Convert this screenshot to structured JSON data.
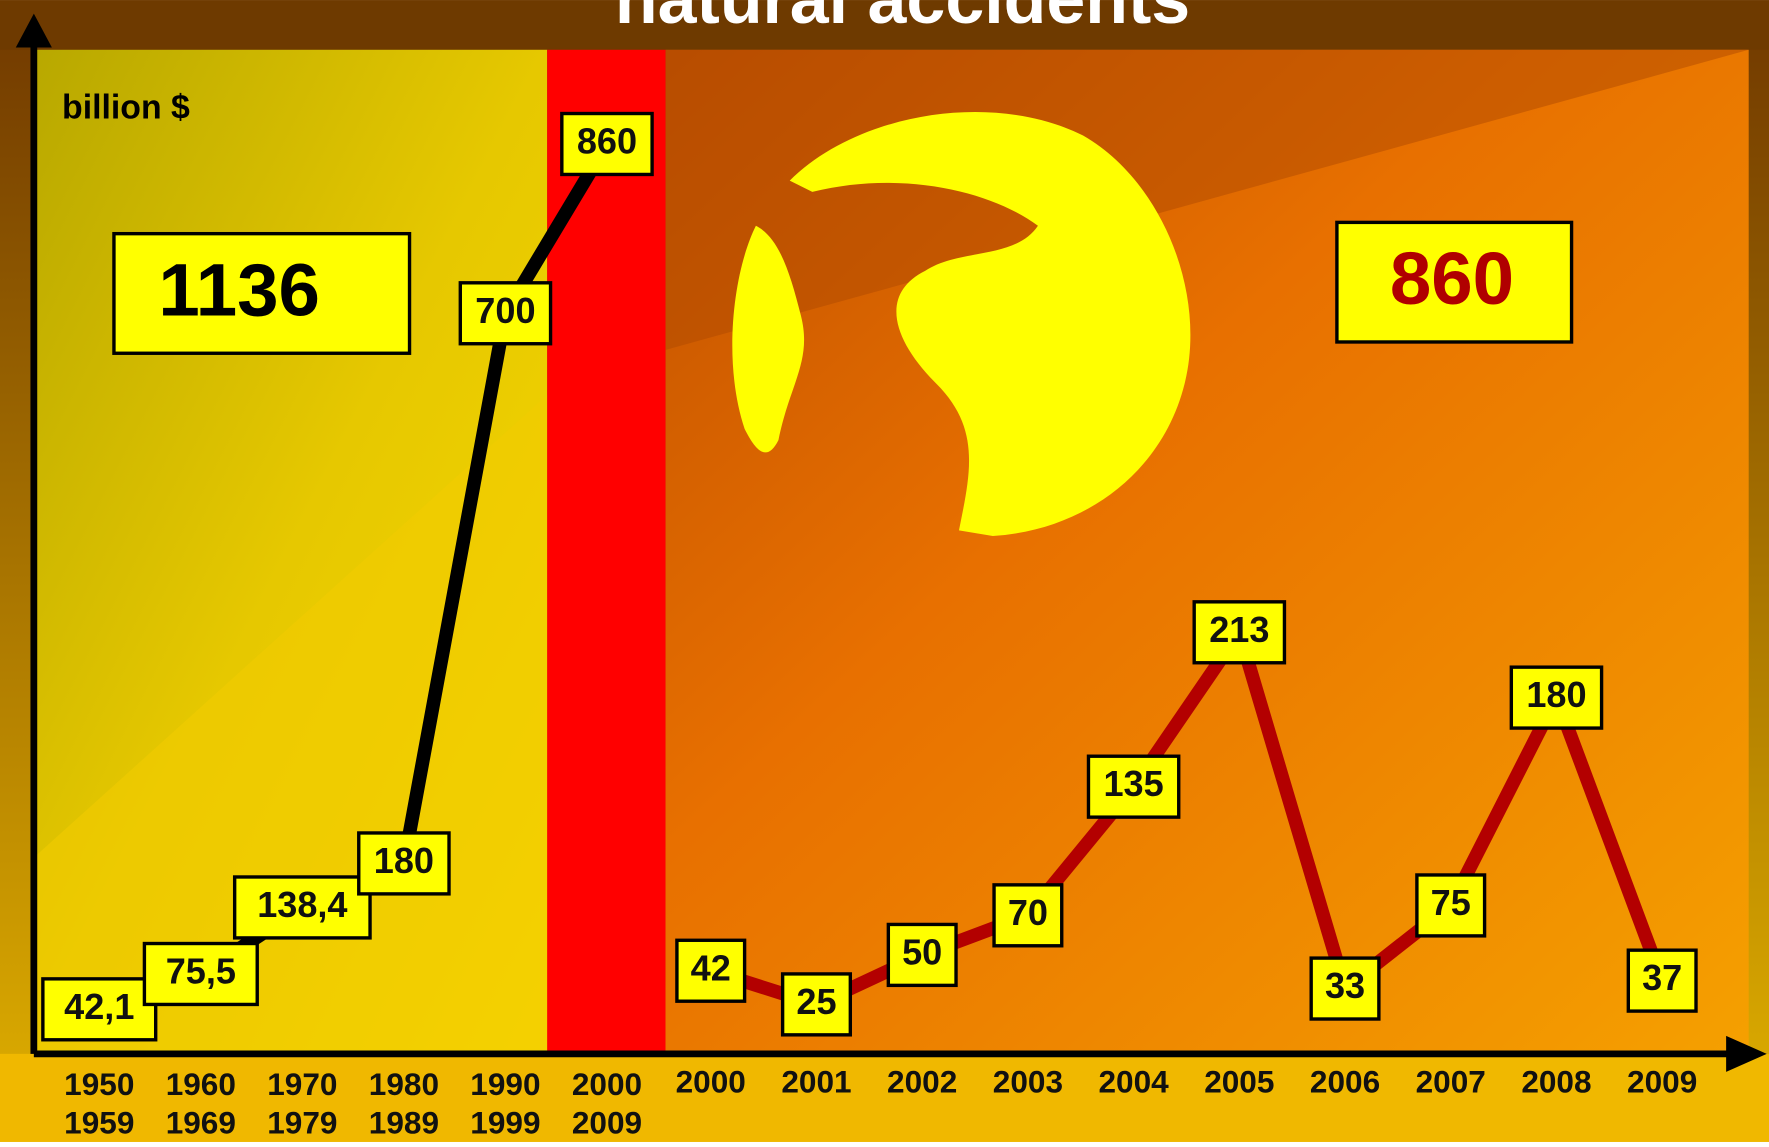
{
  "chart_data": [
    {
      "type": "line",
      "title": "natural accidents",
      "y_label": "billion $",
      "categories": [
        [
          "1950",
          "1959"
        ],
        [
          "1960",
          "1969"
        ],
        [
          "1970",
          "1979"
        ],
        [
          "1980",
          "1989"
        ],
        [
          "1990",
          "1999"
        ],
        [
          "2000",
          "2009"
        ]
      ],
      "values": [
        42.1,
        75.5,
        138.4,
        180,
        700,
        860
      ],
      "value_labels": [
        "42,1",
        "75,5",
        "138,4",
        "180",
        "700",
        "860"
      ],
      "color": "#000000",
      "ylim": [
        0,
        900
      ],
      "annotation": "1136"
    },
    {
      "type": "line",
      "categories": [
        "2000",
        "2001",
        "2002",
        "2003",
        "2004",
        "2005",
        "2006",
        "2007",
        "2008",
        "2009"
      ],
      "values": [
        42,
        25,
        50,
        70,
        135,
        213,
        33,
        75,
        180,
        37
      ],
      "color": "#b30000",
      "ylim": [
        0,
        350
      ],
      "annotation": "860"
    }
  ]
}
